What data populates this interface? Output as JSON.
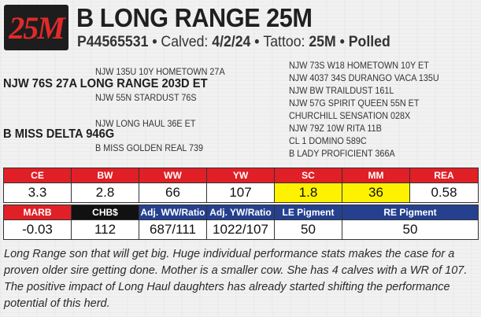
{
  "lot": "25M",
  "name": "B LONG RANGE 25M",
  "reg": "P44565531",
  "calved_label": "Calved:",
  "calved": "4/2/24",
  "tattoo_label": "Tattoo:",
  "tattoo": "25M",
  "polled": "Polled",
  "sep": "•",
  "pedigree": {
    "sire_sire": "NJW 135U 10Y HOMETOWN 27A",
    "sire": "NJW 76S 27A LONG RANGE 203D ET",
    "sire_dam": "NJW 55N STARDUST 76S",
    "dam_sire": "NJW LONG HAUL 36E ET",
    "dam": "B MISS DELTA 946G",
    "dam_dam": "B MISS GOLDEN REAL 739",
    "right": [
      "NJW 73S W18 HOMETOWN 10Y ET",
      "NJW 4037 34S DURANGO VACA 135U",
      "NJW BW TRAILDUST 161L",
      "NJW 57G SPIRIT QUEEN 55N ET",
      "CHURCHILL SENSATION 028X",
      "NJW 79Z 10W RITA 11B",
      "CL 1 DOMINO 589C",
      "B LADY PROFICIENT 366A"
    ]
  },
  "epd_row1": {
    "headers": [
      "CE",
      "BW",
      "WW",
      "YW",
      "SC",
      "MM",
      "REA"
    ],
    "values": [
      "3.3",
      "2.8",
      "66",
      "107",
      "1.8",
      "36",
      "0.58"
    ]
  },
  "epd_row2": {
    "headers": [
      "MARB",
      "CHB$",
      "Adj. WW/Ratio",
      "Adj. YW/Ratio",
      "LE Pigment",
      "RE Pigment"
    ],
    "values": [
      "-0.03",
      "112",
      "687/111",
      "1022/107",
      "50",
      "50"
    ]
  },
  "colors": {
    "red": "#e01f26",
    "blue": "#25408f",
    "black": "#111111",
    "highlight": "#fff200"
  },
  "description": "Long Range son that will get big. Huge individual performance stats makes the case for a proven older sire getting done. Mother is a smaller cow. She has 4 calves with a WR of 107. The positive impact of Long Haul daughters has already started shifting the performance potential of this herd."
}
